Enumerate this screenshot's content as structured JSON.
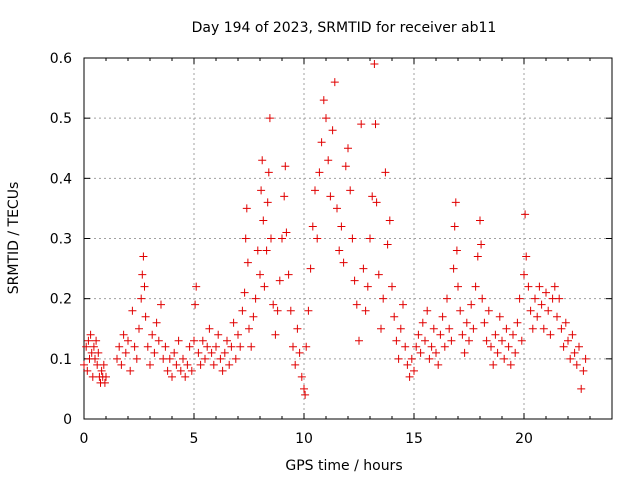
{
  "chart_data": {
    "type": "scatter",
    "title": "Day 194 of 2023, SRMTID for receiver ab11",
    "xlabel": "GPS time / hours",
    "ylabel": "SRMTID / TECUs",
    "xlim": [
      0,
      24
    ],
    "ylim": [
      0,
      0.6
    ],
    "x_ticks": [
      0,
      5,
      10,
      15,
      20
    ],
    "y_ticks": [
      0,
      0.1,
      0.2,
      0.3,
      0.4,
      0.5,
      0.6
    ],
    "x_tick_labels": [
      "0",
      "5",
      "10",
      "15",
      "20"
    ],
    "y_tick_labels": [
      "0",
      "0.1",
      "0.2",
      "0.3",
      "0.4",
      "0.5",
      "0.6"
    ],
    "grid": true,
    "marker": "+",
    "series_color": "#e00000",
    "series": [
      {
        "name": "SRMTID",
        "points": [
          [
            0.0,
            0.09
          ],
          [
            0.1,
            0.12
          ],
          [
            0.15,
            0.08
          ],
          [
            0.2,
            0.13
          ],
          [
            0.25,
            0.1
          ],
          [
            0.3,
            0.14
          ],
          [
            0.35,
            0.11
          ],
          [
            0.4,
            0.07
          ],
          [
            0.45,
            0.12
          ],
          [
            0.5,
            0.1
          ],
          [
            0.55,
            0.13
          ],
          [
            0.6,
            0.09
          ],
          [
            0.65,
            0.11
          ],
          [
            0.7,
            0.07
          ],
          [
            0.75,
            0.06
          ],
          [
            0.8,
            0.08
          ],
          [
            0.85,
            0.07
          ],
          [
            0.9,
            0.09
          ],
          [
            0.95,
            0.06
          ],
          [
            1.0,
            0.07
          ],
          [
            1.5,
            0.1
          ],
          [
            1.6,
            0.12
          ],
          [
            1.7,
            0.09
          ],
          [
            1.8,
            0.14
          ],
          [
            1.9,
            0.11
          ],
          [
            2.0,
            0.13
          ],
          [
            2.1,
            0.08
          ],
          [
            2.2,
            0.18
          ],
          [
            2.3,
            0.12
          ],
          [
            2.4,
            0.1
          ],
          [
            2.5,
            0.15
          ],
          [
            2.6,
            0.2
          ],
          [
            2.65,
            0.24
          ],
          [
            2.7,
            0.27
          ],
          [
            2.75,
            0.22
          ],
          [
            2.8,
            0.17
          ],
          [
            2.9,
            0.12
          ],
          [
            3.0,
            0.09
          ],
          [
            3.1,
            0.14
          ],
          [
            3.2,
            0.11
          ],
          [
            3.3,
            0.16
          ],
          [
            3.4,
            0.13
          ],
          [
            3.5,
            0.19
          ],
          [
            3.6,
            0.1
          ],
          [
            3.7,
            0.12
          ],
          [
            3.8,
            0.08
          ],
          [
            3.9,
            0.1
          ],
          [
            4.0,
            0.07
          ],
          [
            4.1,
            0.11
          ],
          [
            4.2,
            0.09
          ],
          [
            4.3,
            0.13
          ],
          [
            4.4,
            0.08
          ],
          [
            4.5,
            0.1
          ],
          [
            4.6,
            0.07
          ],
          [
            4.7,
            0.09
          ],
          [
            4.8,
            0.12
          ],
          [
            4.9,
            0.08
          ],
          [
            5.0,
            0.13
          ],
          [
            5.05,
            0.19
          ],
          [
            5.1,
            0.22
          ],
          [
            5.2,
            0.11
          ],
          [
            5.3,
            0.09
          ],
          [
            5.4,
            0.13
          ],
          [
            5.5,
            0.1
          ],
          [
            5.6,
            0.12
          ],
          [
            5.7,
            0.15
          ],
          [
            5.8,
            0.11
          ],
          [
            5.9,
            0.09
          ],
          [
            6.0,
            0.12
          ],
          [
            6.1,
            0.14
          ],
          [
            6.2,
            0.1
          ],
          [
            6.3,
            0.08
          ],
          [
            6.4,
            0.11
          ],
          [
            6.5,
            0.13
          ],
          [
            6.6,
            0.09
          ],
          [
            6.7,
            0.12
          ],
          [
            6.8,
            0.16
          ],
          [
            6.9,
            0.1
          ],
          [
            7.0,
            0.14
          ],
          [
            7.1,
            0.12
          ],
          [
            7.2,
            0.18
          ],
          [
            7.3,
            0.21
          ],
          [
            7.35,
            0.3
          ],
          [
            7.4,
            0.35
          ],
          [
            7.45,
            0.26
          ],
          [
            7.5,
            0.15
          ],
          [
            7.6,
            0.12
          ],
          [
            7.7,
            0.17
          ],
          [
            7.8,
            0.2
          ],
          [
            7.9,
            0.28
          ],
          [
            8.0,
            0.24
          ],
          [
            8.05,
            0.38
          ],
          [
            8.1,
            0.43
          ],
          [
            8.15,
            0.33
          ],
          [
            8.2,
            0.22
          ],
          [
            8.3,
            0.28
          ],
          [
            8.35,
            0.36
          ],
          [
            8.4,
            0.41
          ],
          [
            8.45,
            0.5
          ],
          [
            8.5,
            0.3
          ],
          [
            8.6,
            0.19
          ],
          [
            8.7,
            0.14
          ],
          [
            8.8,
            0.18
          ],
          [
            8.9,
            0.23
          ],
          [
            9.0,
            0.3
          ],
          [
            9.1,
            0.37
          ],
          [
            9.15,
            0.42
          ],
          [
            9.2,
            0.31
          ],
          [
            9.3,
            0.24
          ],
          [
            9.4,
            0.18
          ],
          [
            9.5,
            0.12
          ],
          [
            9.6,
            0.09
          ],
          [
            9.7,
            0.15
          ],
          [
            9.8,
            0.11
          ],
          [
            9.9,
            0.07
          ],
          [
            10.0,
            0.05
          ],
          [
            10.05,
            0.04
          ],
          [
            10.1,
            0.12
          ],
          [
            10.2,
            0.18
          ],
          [
            10.3,
            0.25
          ],
          [
            10.4,
            0.32
          ],
          [
            10.5,
            0.38
          ],
          [
            10.6,
            0.3
          ],
          [
            10.7,
            0.41
          ],
          [
            10.8,
            0.46
          ],
          [
            10.9,
            0.53
          ],
          [
            11.0,
            0.5
          ],
          [
            11.1,
            0.43
          ],
          [
            11.2,
            0.37
          ],
          [
            11.3,
            0.48
          ],
          [
            11.4,
            0.56
          ],
          [
            11.5,
            0.35
          ],
          [
            11.6,
            0.28
          ],
          [
            11.7,
            0.32
          ],
          [
            11.8,
            0.26
          ],
          [
            11.9,
            0.42
          ],
          [
            12.0,
            0.45
          ],
          [
            12.1,
            0.38
          ],
          [
            12.2,
            0.3
          ],
          [
            12.3,
            0.23
          ],
          [
            12.4,
            0.19
          ],
          [
            12.5,
            0.13
          ],
          [
            12.6,
            0.49
          ],
          [
            12.7,
            0.25
          ],
          [
            12.8,
            0.18
          ],
          [
            12.9,
            0.22
          ],
          [
            13.0,
            0.3
          ],
          [
            13.1,
            0.37
          ],
          [
            13.2,
            0.59
          ],
          [
            13.25,
            0.49
          ],
          [
            13.3,
            0.36
          ],
          [
            13.4,
            0.24
          ],
          [
            13.5,
            0.15
          ],
          [
            13.6,
            0.2
          ],
          [
            13.7,
            0.41
          ],
          [
            13.8,
            0.29
          ],
          [
            13.9,
            0.33
          ],
          [
            14.0,
            0.22
          ],
          [
            14.1,
            0.17
          ],
          [
            14.2,
            0.13
          ],
          [
            14.3,
            0.1
          ],
          [
            14.4,
            0.15
          ],
          [
            14.5,
            0.19
          ],
          [
            14.6,
            0.12
          ],
          [
            14.7,
            0.09
          ],
          [
            14.8,
            0.07
          ],
          [
            14.9,
            0.1
          ],
          [
            15.0,
            0.08
          ],
          [
            15.1,
            0.12
          ],
          [
            15.2,
            0.14
          ],
          [
            15.3,
            0.11
          ],
          [
            15.4,
            0.16
          ],
          [
            15.5,
            0.13
          ],
          [
            15.6,
            0.18
          ],
          [
            15.7,
            0.1
          ],
          [
            15.8,
            0.12
          ],
          [
            15.9,
            0.15
          ],
          [
            16.0,
            0.11
          ],
          [
            16.1,
            0.09
          ],
          [
            16.2,
            0.14
          ],
          [
            16.3,
            0.17
          ],
          [
            16.4,
            0.12
          ],
          [
            16.5,
            0.2
          ],
          [
            16.6,
            0.15
          ],
          [
            16.7,
            0.13
          ],
          [
            16.8,
            0.25
          ],
          [
            16.85,
            0.32
          ],
          [
            16.9,
            0.36
          ],
          [
            16.95,
            0.28
          ],
          [
            17.0,
            0.22
          ],
          [
            17.1,
            0.18
          ],
          [
            17.2,
            0.14
          ],
          [
            17.3,
            0.11
          ],
          [
            17.4,
            0.16
          ],
          [
            17.5,
            0.13
          ],
          [
            17.6,
            0.19
          ],
          [
            17.7,
            0.15
          ],
          [
            17.8,
            0.22
          ],
          [
            17.9,
            0.27
          ],
          [
            18.0,
            0.33
          ],
          [
            18.05,
            0.29
          ],
          [
            18.1,
            0.2
          ],
          [
            18.2,
            0.16
          ],
          [
            18.3,
            0.13
          ],
          [
            18.4,
            0.18
          ],
          [
            18.5,
            0.12
          ],
          [
            18.6,
            0.09
          ],
          [
            18.7,
            0.14
          ],
          [
            18.8,
            0.11
          ],
          [
            18.9,
            0.17
          ],
          [
            19.0,
            0.13
          ],
          [
            19.1,
            0.1
          ],
          [
            19.2,
            0.15
          ],
          [
            19.3,
            0.12
          ],
          [
            19.4,
            0.09
          ],
          [
            19.5,
            0.14
          ],
          [
            19.6,
            0.11
          ],
          [
            19.7,
            0.16
          ],
          [
            19.8,
            0.2
          ],
          [
            19.9,
            0.13
          ],
          [
            20.0,
            0.24
          ],
          [
            20.05,
            0.34
          ],
          [
            20.1,
            0.27
          ],
          [
            20.2,
            0.22
          ],
          [
            20.3,
            0.18
          ],
          [
            20.4,
            0.15
          ],
          [
            20.5,
            0.2
          ],
          [
            20.6,
            0.17
          ],
          [
            20.7,
            0.22
          ],
          [
            20.8,
            0.19
          ],
          [
            20.9,
            0.15
          ],
          [
            21.0,
            0.21
          ],
          [
            21.1,
            0.18
          ],
          [
            21.2,
            0.14
          ],
          [
            21.3,
            0.2
          ],
          [
            21.4,
            0.22
          ],
          [
            21.5,
            0.17
          ],
          [
            21.6,
            0.2
          ],
          [
            21.7,
            0.15
          ],
          [
            21.8,
            0.12
          ],
          [
            21.9,
            0.16
          ],
          [
            22.0,
            0.13
          ],
          [
            22.1,
            0.1
          ],
          [
            22.2,
            0.14
          ],
          [
            22.3,
            0.11
          ],
          [
            22.4,
            0.09
          ],
          [
            22.5,
            0.12
          ],
          [
            22.6,
            0.05
          ],
          [
            22.7,
            0.08
          ],
          [
            22.8,
            0.1
          ]
        ]
      }
    ]
  }
}
